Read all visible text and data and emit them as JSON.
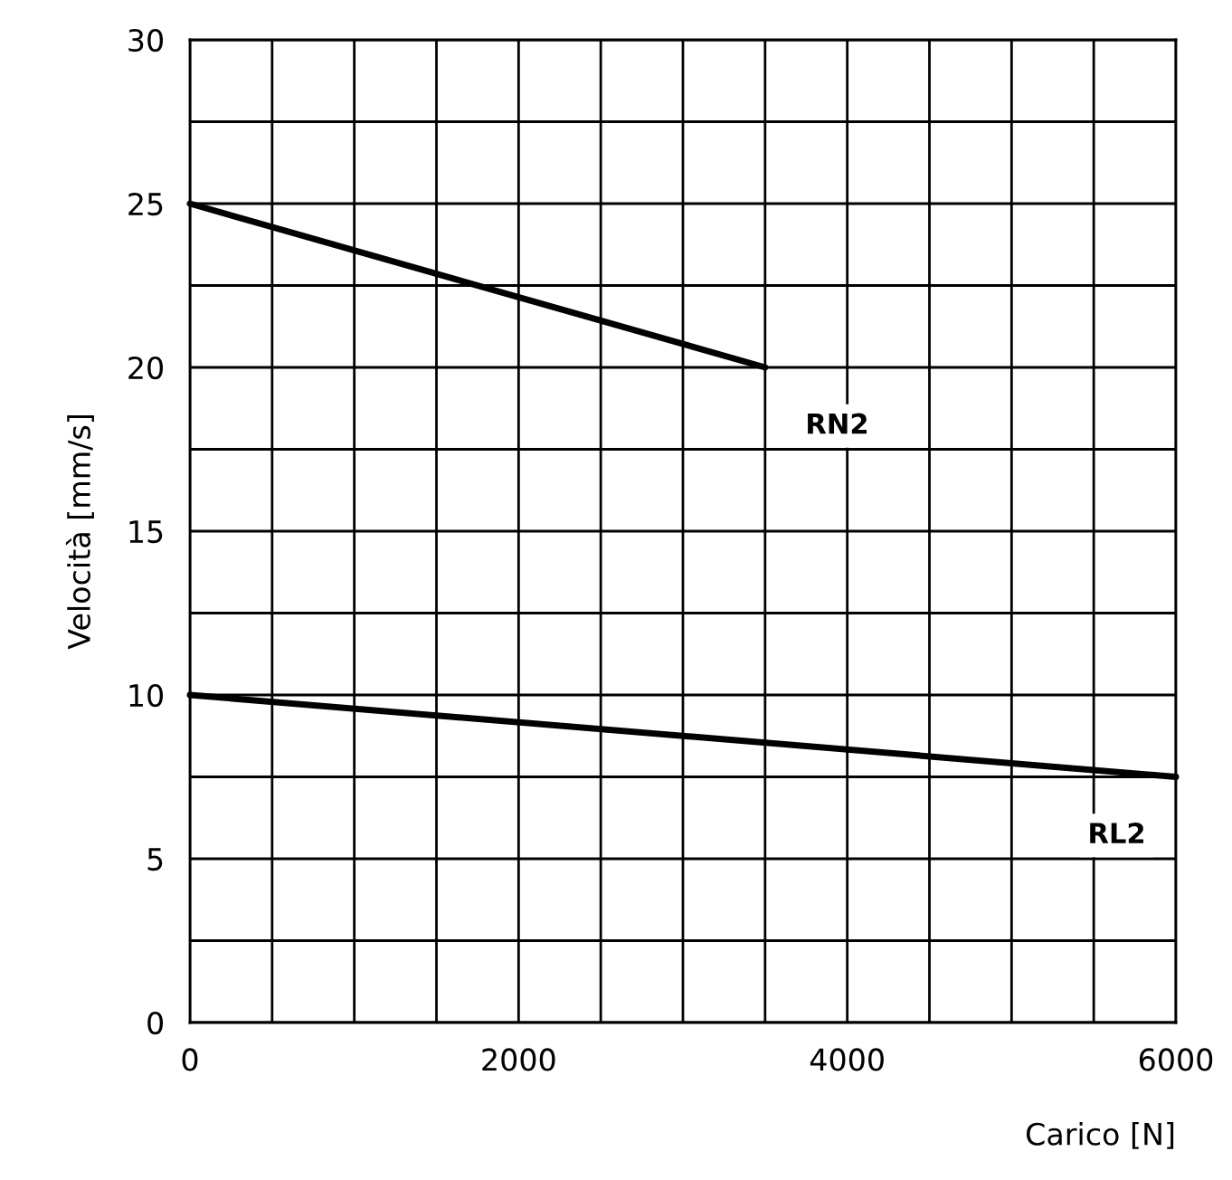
{
  "chart_data": {
    "type": "line",
    "xlabel": "Carico [N]",
    "ylabel": "Velocità [mm/s]",
    "xlim": [
      0,
      6000
    ],
    "ylim": [
      0,
      30
    ],
    "xticks": [
      0,
      {
        "value": 500,
        "label": null
      },
      {
        "value": 1000,
        "label": null
      },
      {
        "value": 1500,
        "label": null
      },
      2000,
      {
        "value": 2500,
        "label": null
      },
      {
        "value": 3000,
        "label": null
      },
      {
        "value": 3500,
        "label": null
      },
      4000,
      {
        "value": 4500,
        "label": null
      },
      {
        "value": 5000,
        "label": null
      },
      {
        "value": 5500,
        "label": null
      },
      6000
    ],
    "yticks": [
      0,
      {
        "value": 2.5,
        "label": null
      },
      5,
      {
        "value": 7.5,
        "label": null
      },
      10,
      {
        "value": 12.5,
        "label": null
      },
      15,
      {
        "value": 17.5,
        "label": null
      },
      20,
      {
        "value": 22.5,
        "label": null
      },
      25,
      {
        "value": 27.5,
        "label": null
      },
      30
    ],
    "grid": true,
    "series": [
      {
        "name": "RN2",
        "color": "#000000",
        "x": [
          0,
          3500
        ],
        "values": [
          25,
          20
        ]
      },
      {
        "name": "RL2",
        "color": "#000000",
        "x": [
          0,
          6000
        ],
        "values": [
          10,
          7.5
        ]
      }
    ]
  }
}
